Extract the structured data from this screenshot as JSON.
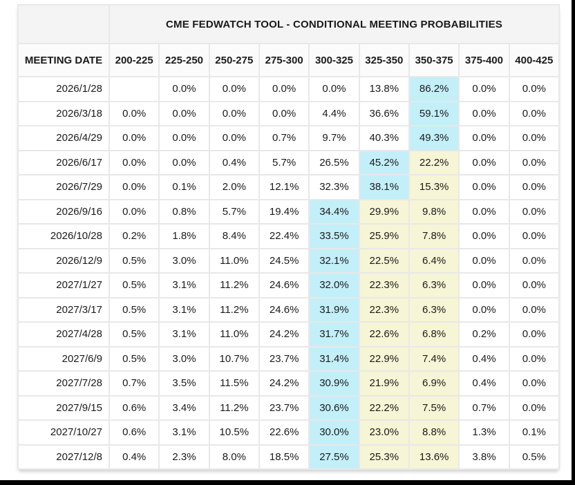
{
  "colors": {
    "highlight_cyan": "#c3eff9",
    "highlight_yellow": "#f6f5d5",
    "header_bg": "#f4f4f4",
    "grid_line": "#e8e8e8",
    "frame_black": "#000000"
  },
  "chart_data": {
    "type": "table",
    "title": "CME FEDWATCH TOOL - CONDITIONAL MEETING PROBABILITIES",
    "date_column_header": "MEETING DATE",
    "columns": [
      "MEETING DATE",
      "200-225",
      "225-250",
      "250-275",
      "275-300",
      "300-325",
      "325-350",
      "350-375",
      "375-400",
      "400-425"
    ],
    "highlight_legend": {
      "cyan": "highlight_cyan",
      "yellow": "highlight_yellow"
    },
    "rows": [
      {
        "date": "2026/1/28",
        "values": [
          "",
          "0.0%",
          "0.0%",
          "0.0%",
          "0.0%",
          "13.8%",
          "86.2%",
          "0.0%",
          "0.0%"
        ],
        "highlights": [
          "",
          "",
          "",
          "",
          "",
          "",
          "cyan",
          "",
          ""
        ]
      },
      {
        "date": "2026/3/18",
        "values": [
          "0.0%",
          "0.0%",
          "0.0%",
          "0.0%",
          "4.4%",
          "36.6%",
          "59.1%",
          "0.0%",
          "0.0%"
        ],
        "highlights": [
          "",
          "",
          "",
          "",
          "",
          "",
          "cyan",
          "",
          ""
        ]
      },
      {
        "date": "2026/4/29",
        "values": [
          "0.0%",
          "0.0%",
          "0.0%",
          "0.7%",
          "9.7%",
          "40.3%",
          "49.3%",
          "0.0%",
          "0.0%"
        ],
        "highlights": [
          "",
          "",
          "",
          "",
          "",
          "",
          "cyan",
          "",
          ""
        ]
      },
      {
        "date": "2026/6/17",
        "values": [
          "0.0%",
          "0.0%",
          "0.4%",
          "5.7%",
          "26.5%",
          "45.2%",
          "22.2%",
          "0.0%",
          "0.0%"
        ],
        "highlights": [
          "",
          "",
          "",
          "",
          "",
          "cyan",
          "yellow",
          "",
          ""
        ]
      },
      {
        "date": "2026/7/29",
        "values": [
          "0.0%",
          "0.1%",
          "2.0%",
          "12.1%",
          "32.3%",
          "38.1%",
          "15.3%",
          "0.0%",
          "0.0%"
        ],
        "highlights": [
          "",
          "",
          "",
          "",
          "",
          "cyan",
          "yellow",
          "",
          ""
        ]
      },
      {
        "date": "2026/9/16",
        "values": [
          "0.0%",
          "0.8%",
          "5.7%",
          "19.4%",
          "34.4%",
          "29.9%",
          "9.8%",
          "0.0%",
          "0.0%"
        ],
        "highlights": [
          "",
          "",
          "",
          "",
          "cyan",
          "yellow",
          "yellow",
          "",
          ""
        ]
      },
      {
        "date": "2026/10/28",
        "values": [
          "0.2%",
          "1.8%",
          "8.4%",
          "22.4%",
          "33.5%",
          "25.9%",
          "7.8%",
          "0.0%",
          "0.0%"
        ],
        "highlights": [
          "",
          "",
          "",
          "",
          "cyan",
          "yellow",
          "yellow",
          "",
          ""
        ]
      },
      {
        "date": "2026/12/9",
        "values": [
          "0.5%",
          "3.0%",
          "11.0%",
          "24.5%",
          "32.1%",
          "22.5%",
          "6.4%",
          "0.0%",
          "0.0%"
        ],
        "highlights": [
          "",
          "",
          "",
          "",
          "cyan",
          "yellow",
          "yellow",
          "",
          ""
        ]
      },
      {
        "date": "2027/1/27",
        "values": [
          "0.5%",
          "3.1%",
          "11.2%",
          "24.6%",
          "32.0%",
          "22.3%",
          "6.3%",
          "0.0%",
          "0.0%"
        ],
        "highlights": [
          "",
          "",
          "",
          "",
          "cyan",
          "yellow",
          "yellow",
          "",
          ""
        ]
      },
      {
        "date": "2027/3/17",
        "values": [
          "0.5%",
          "3.1%",
          "11.2%",
          "24.6%",
          "31.9%",
          "22.3%",
          "6.3%",
          "0.0%",
          "0.0%"
        ],
        "highlights": [
          "",
          "",
          "",
          "",
          "cyan",
          "yellow",
          "yellow",
          "",
          ""
        ]
      },
      {
        "date": "2027/4/28",
        "values": [
          "0.5%",
          "3.1%",
          "11.0%",
          "24.2%",
          "31.7%",
          "22.6%",
          "6.8%",
          "0.2%",
          "0.0%"
        ],
        "highlights": [
          "",
          "",
          "",
          "",
          "cyan",
          "yellow",
          "yellow",
          "",
          ""
        ]
      },
      {
        "date": "2027/6/9",
        "values": [
          "0.5%",
          "3.0%",
          "10.7%",
          "23.7%",
          "31.4%",
          "22.9%",
          "7.4%",
          "0.4%",
          "0.0%"
        ],
        "highlights": [
          "",
          "",
          "",
          "",
          "cyan",
          "yellow",
          "yellow",
          "",
          ""
        ]
      },
      {
        "date": "2027/7/28",
        "values": [
          "0.7%",
          "3.5%",
          "11.5%",
          "24.2%",
          "30.9%",
          "21.9%",
          "6.9%",
          "0.4%",
          "0.0%"
        ],
        "highlights": [
          "",
          "",
          "",
          "",
          "cyan",
          "yellow",
          "yellow",
          "",
          ""
        ]
      },
      {
        "date": "2027/9/15",
        "values": [
          "0.6%",
          "3.4%",
          "11.2%",
          "23.7%",
          "30.6%",
          "22.2%",
          "7.5%",
          "0.7%",
          "0.0%"
        ],
        "highlights": [
          "",
          "",
          "",
          "",
          "cyan",
          "yellow",
          "yellow",
          "",
          ""
        ]
      },
      {
        "date": "2027/10/27",
        "values": [
          "0.6%",
          "3.1%",
          "10.5%",
          "22.6%",
          "30.0%",
          "23.0%",
          "8.8%",
          "1.3%",
          "0.1%"
        ],
        "highlights": [
          "",
          "",
          "",
          "",
          "cyan",
          "yellow",
          "yellow",
          "",
          ""
        ]
      },
      {
        "date": "2027/12/8",
        "values": [
          "0.4%",
          "2.3%",
          "8.0%",
          "18.5%",
          "27.5%",
          "25.3%",
          "13.6%",
          "3.8%",
          "0.5%"
        ],
        "highlights": [
          "",
          "",
          "",
          "",
          "cyan",
          "yellow",
          "yellow",
          "",
          ""
        ]
      }
    ]
  }
}
